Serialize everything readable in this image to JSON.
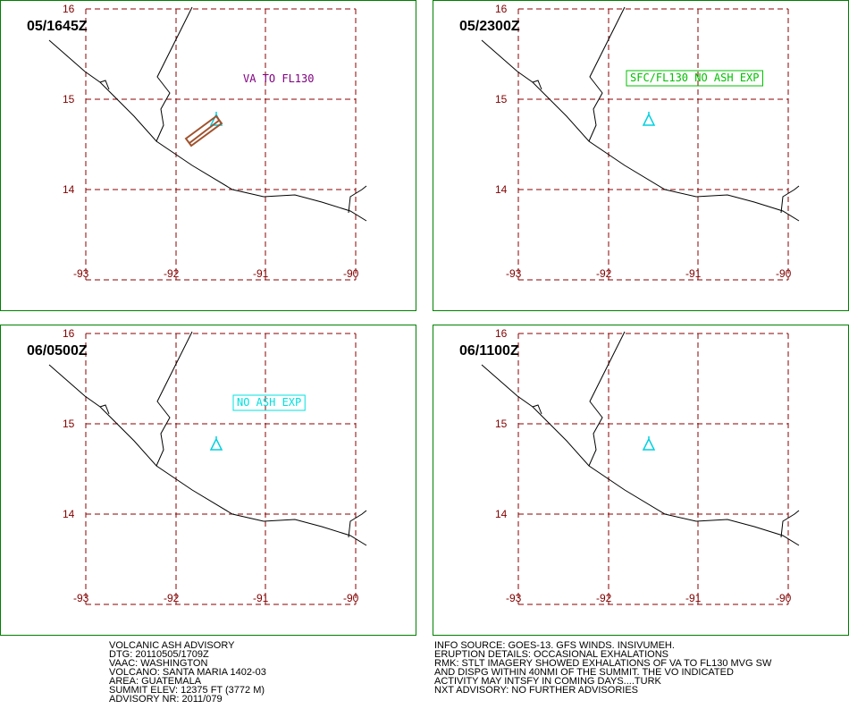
{
  "panels": [
    {
      "time": "05/1645Z",
      "annotation": "VA TO FL130"
    },
    {
      "time": "05/2300Z",
      "annotation": "SFC/FL130 NO ASH EXP"
    },
    {
      "time": "06/0500Z",
      "annotation": "NO ASH EXP"
    },
    {
      "time": "06/1100Z"
    }
  ],
  "lat_labels": [
    "16",
    "15",
    "14"
  ],
  "lon_labels": [
    "-93",
    "-92",
    "-91",
    "-90"
  ],
  "advisory_left": [
    "VOLCANIC ASH ADVISORY",
    "DTG: 20110505/1709Z",
    "VAAC: WASHINGTON",
    "VOLCANO: SANTA MARIA 1402-03",
    "AREA: GUATEMALA",
    "SUMMIT ELEV: 12375 FT (3772 M)",
    "ADVISORY NR: 2011/079"
  ],
  "advisory_right": [
    "INFO SOURCE: GOES-13. GFS WINDS. INSIVUMEH.",
    "ERUPTION DETAILS: OCCASIONAL EXHALATIONS",
    "RMK: STLT IMAGERY SHOWED EXHALATIONS OF VA TO FL130 MVG SW",
    "AND DISPG WITHIN 40NMI OF THE SUMMIT. THE VO INDICATED",
    "ACTIVITY MAY INTSFY IN COMING DAYS....TURK",
    "NXT ADVISORY: NO FURTHER ADVISORIES"
  ]
}
